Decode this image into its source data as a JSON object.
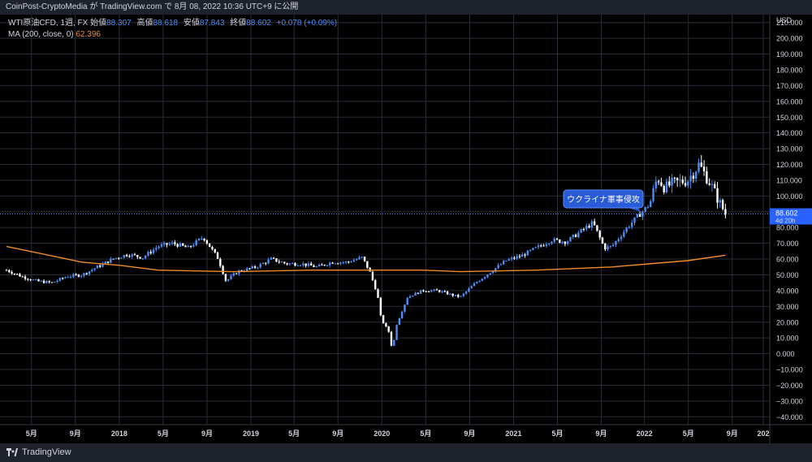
{
  "header": {
    "publish_line": "CoinPost-CryptoMedia が TradingView.com で 8月 08, 2022 10:36 UTC+9 に公開"
  },
  "legend": {
    "symbol": "WTI原油CFD, 1週, FX",
    "open_label": "始値",
    "open": "88.307",
    "high_label": "高値",
    "high": "88.618",
    "low_label": "安値",
    "low": "87.843",
    "close_label": "終値",
    "close": "88.602",
    "change": "+0.078 (+0.09%)",
    "ma_label": "MA (200, close, 0)",
    "ma_value": "62.396"
  },
  "price_tag": {
    "value": "88.602",
    "countdown": "4d 20h"
  },
  "footer": {
    "brand": "TradingView"
  },
  "colors": {
    "up": "#4c8df6",
    "down": "#ffffff",
    "ma": "#f08c2a",
    "grid": "#2a2e39",
    "bg": "#000000",
    "tag": "#2962ff"
  },
  "chart_data": {
    "type": "candlestick",
    "currency": "USD",
    "timeframe": "1W",
    "ylim": [
      -45,
      215
    ],
    "y_ticks": [
      "210.000",
      "200.000",
      "190.000",
      "180.000",
      "170.000",
      "160.000",
      "150.000",
      "140.000",
      "130.000",
      "120.000",
      "110.000",
      "100.000",
      "90.000",
      "80.000",
      "70.000",
      "60.000",
      "50.000",
      "40.000",
      "30.000",
      "20.000",
      "10.000",
      "0.000",
      "−10.000",
      "−20.000",
      "−30.000",
      "−40.000"
    ],
    "x_ticks": [
      "5月",
      "9月",
      "2018",
      "5月",
      "9月",
      "2019",
      "5月",
      "9月",
      "2020",
      "5月",
      "9月",
      "2021",
      "5月",
      "9月",
      "2022",
      "5月",
      "9月",
      "202"
    ],
    "x_tick_fracs": [
      0.033,
      0.091,
      0.149,
      0.207,
      0.265,
      0.323,
      0.38,
      0.438,
      0.496,
      0.554,
      0.612,
      0.67,
      0.728,
      0.786,
      0.843,
      0.901,
      0.959,
      1.0
    ],
    "close_trace": [
      [
        0.0,
        53
      ],
      [
        0.02,
        49
      ],
      [
        0.04,
        46
      ],
      [
        0.06,
        45
      ],
      [
        0.08,
        49
      ],
      [
        0.1,
        50
      ],
      [
        0.12,
        55
      ],
      [
        0.14,
        60
      ],
      [
        0.16,
        63
      ],
      [
        0.18,
        61
      ],
      [
        0.2,
        68
      ],
      [
        0.22,
        70
      ],
      [
        0.24,
        67
      ],
      [
        0.26,
        74
      ],
      [
        0.28,
        60
      ],
      [
        0.29,
        46
      ],
      [
        0.305,
        52
      ],
      [
        0.33,
        55
      ],
      [
        0.35,
        60
      ],
      [
        0.37,
        57
      ],
      [
        0.39,
        57
      ],
      [
        0.41,
        55
      ],
      [
        0.43,
        58
      ],
      [
        0.45,
        58
      ],
      [
        0.47,
        61
      ],
      [
        0.48,
        52
      ],
      [
        0.49,
        38
      ],
      [
        0.495,
        22
      ],
      [
        0.505,
        14
      ],
      [
        0.51,
        2
      ],
      [
        0.515,
        18
      ],
      [
        0.53,
        36
      ],
      [
        0.55,
        40
      ],
      [
        0.57,
        40
      ],
      [
        0.59,
        37
      ],
      [
        0.6,
        36
      ],
      [
        0.62,
        45
      ],
      [
        0.64,
        52
      ],
      [
        0.66,
        59
      ],
      [
        0.68,
        62
      ],
      [
        0.7,
        67
      ],
      [
        0.72,
        72
      ],
      [
        0.74,
        71
      ],
      [
        0.76,
        78
      ],
      [
        0.775,
        83
      ],
      [
        0.79,
        67
      ],
      [
        0.8,
        68
      ],
      [
        0.82,
        80
      ],
      [
        0.84,
        90
      ],
      [
        0.85,
        95
      ],
      [
        0.86,
        112
      ],
      [
        0.87,
        105
      ],
      [
        0.88,
        108
      ],
      [
        0.9,
        110
      ],
      [
        0.915,
        120
      ],
      [
        0.93,
        108
      ],
      [
        0.94,
        98
      ],
      [
        0.95,
        88.6
      ]
    ],
    "ma_trace": [
      [
        0.0,
        68
      ],
      [
        0.05,
        63
      ],
      [
        0.1,
        58
      ],
      [
        0.15,
        56
      ],
      [
        0.2,
        53
      ],
      [
        0.3,
        52
      ],
      [
        0.4,
        53
      ],
      [
        0.5,
        53
      ],
      [
        0.55,
        53
      ],
      [
        0.6,
        52
      ],
      [
        0.7,
        53
      ],
      [
        0.8,
        55
      ],
      [
        0.85,
        57
      ],
      [
        0.9,
        59
      ],
      [
        0.95,
        62.4
      ]
    ],
    "annotation": {
      "text": "ウクライナ軍事侵攻",
      "pointer_frac": 0.838,
      "pointer_price": 90
    },
    "last_price": 88.602,
    "ma_last": 62.396
  }
}
